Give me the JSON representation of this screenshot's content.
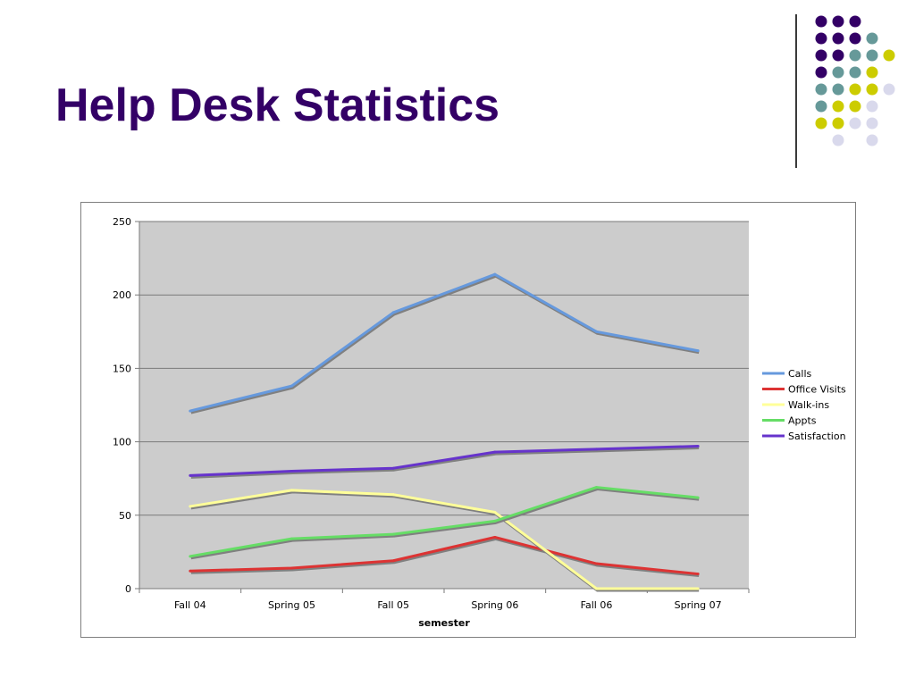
{
  "slide": {
    "title": "Help Desk Statistics"
  },
  "decoration": {
    "dot_colors": {
      "purple": "#330066",
      "teal": "#669999",
      "yellow": "#cccc00",
      "lavender": "#d9d9ec"
    },
    "dot_rows": [
      [
        "purple",
        "purple",
        "purple"
      ],
      [
        "purple",
        "purple",
        "purple",
        "teal"
      ],
      [
        "purple",
        "purple",
        "teal",
        "teal",
        "yellow"
      ],
      [
        "purple",
        "teal",
        "teal",
        "yellow"
      ],
      [
        "teal",
        "teal",
        "yellow",
        "yellow",
        "lavender"
      ],
      [
        "teal",
        "yellow",
        "yellow",
        "lavender"
      ],
      [
        "yellow",
        "yellow",
        "lavender",
        "lavender"
      ],
      [
        "lavender",
        "lavender"
      ]
    ]
  },
  "chart_data": {
    "type": "line",
    "title": "",
    "xlabel": "semester",
    "ylabel": "",
    "categories": [
      "Fall 04",
      "Spring 05",
      "Fall 05",
      "Spring 06",
      "Fall 06",
      "Spring 07"
    ],
    "ylim": [
      0,
      250
    ],
    "yticks": [
      0,
      50,
      100,
      150,
      200,
      250
    ],
    "grid": true,
    "plot_background": "#cccccc",
    "legend_position": "right",
    "series": [
      {
        "name": "Calls",
        "color": "#6699dd",
        "values": [
          121,
          138,
          188,
          214,
          175,
          162
        ]
      },
      {
        "name": "Office Visits",
        "color": "#dd3333",
        "values": [
          12,
          14,
          19,
          35,
          17,
          10
        ]
      },
      {
        "name": "Walk-ins",
        "color": "#ffff99",
        "values": [
          56,
          67,
          64,
          52,
          0,
          0
        ]
      },
      {
        "name": "Appts",
        "color": "#66dd66",
        "values": [
          22,
          34,
          37,
          46,
          69,
          62
        ]
      },
      {
        "name": "Satisfaction",
        "color": "#6633cc",
        "values": [
          77,
          80,
          82,
          93,
          95,
          97
        ]
      }
    ]
  }
}
